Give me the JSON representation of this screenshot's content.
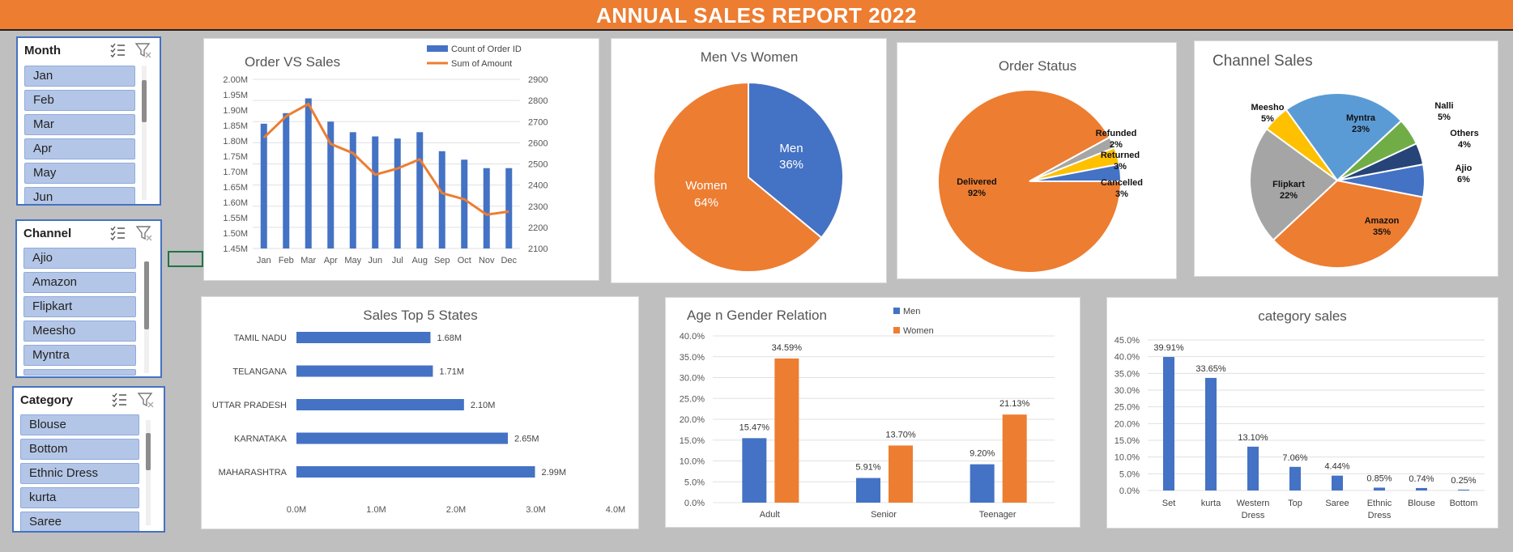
{
  "title": "ANNUAL SALES REPORT 2022",
  "slicers": {
    "month": {
      "label": "Month",
      "items": [
        "Jan",
        "Feb",
        "Mar",
        "Apr",
        "May",
        "Jun"
      ]
    },
    "channel": {
      "label": "Channel",
      "items": [
        "Ajio",
        "Amazon",
        "Flipkart",
        "Meesho",
        "Myntra"
      ]
    },
    "category": {
      "label": "Category",
      "items": [
        "Blouse",
        "Bottom",
        "Ethnic Dress",
        "kurta",
        "Saree"
      ]
    }
  },
  "colors": {
    "blue": "#4472c4",
    "orange": "#ed7d31",
    "gray": "#a5a5a5",
    "gold": "#ffc000",
    "lightblue": "#5b9bd5",
    "green": "#70ad47",
    "navy": "#264478"
  },
  "chart_data": [
    {
      "id": "order_vs_sales",
      "type": "bar",
      "title": "Order VS Sales",
      "categories": [
        "Jan",
        "Feb",
        "Mar",
        "Apr",
        "May",
        "Jun",
        "Jul",
        "Aug",
        "Sep",
        "Oct",
        "Nov",
        "Dec"
      ],
      "series": [
        {
          "name": "Count of Order ID",
          "type": "bar",
          "axis": "left",
          "values": [
            2690,
            2740,
            2810,
            2700,
            2650,
            2630,
            2620,
            2650,
            2560,
            2520,
            2480,
            2480
          ]
        },
        {
          "name": "Sum of Amount",
          "type": "line",
          "axis": "right",
          "values": [
            1.81,
            1.88,
            1.92,
            1.79,
            1.76,
            1.69,
            1.71,
            1.74,
            1.63,
            1.61,
            1.56,
            1.57
          ]
        }
      ],
      "left_axis": {
        "min": 2100,
        "max": 2900,
        "step": 100,
        "ticks": [
          "2100",
          "2200",
          "2300",
          "2400",
          "2500",
          "2600",
          "2700",
          "2800",
          "2900"
        ]
      },
      "right_axis": {
        "min": 1.45,
        "max": 2.0,
        "step": 0.05,
        "ticks": [
          "1.45M",
          "1.50M",
          "1.55M",
          "1.60M",
          "1.65M",
          "1.70M",
          "1.75M",
          "1.80M",
          "1.85M",
          "1.90M",
          "1.95M",
          "2.00M"
        ]
      },
      "legend": "top-right"
    },
    {
      "id": "men_vs_women",
      "type": "pie",
      "title": "Men Vs Women",
      "labels": [
        "Men",
        "Women"
      ],
      "values": [
        36,
        64
      ],
      "data_labels": [
        "36%",
        "64%"
      ]
    },
    {
      "id": "order_status",
      "type": "pie",
      "title": "Order Status",
      "labels": [
        "Delivered",
        "Refunded",
        "Returned",
        "Cancelled"
      ],
      "values": [
        92,
        2,
        3,
        3
      ],
      "data_labels": [
        "92%",
        "2%",
        "3%",
        "3%"
      ]
    },
    {
      "id": "channel_sales",
      "type": "pie",
      "title": "Channel Sales",
      "labels": [
        "Amazon",
        "Flipkart",
        "Meesho",
        "Myntra",
        "Nalli",
        "Others",
        "Ajio"
      ],
      "values": [
        35,
        22,
        5,
        23,
        5,
        4,
        6
      ],
      "data_labels": [
        "35%",
        "22%",
        "5%",
        "23%",
        "5%",
        "4%",
        "6%"
      ]
    },
    {
      "id": "top5_states",
      "type": "bar",
      "orientation": "horizontal",
      "title": "Sales Top 5 States",
      "categories": [
        "TAMIL NADU",
        "TELANGANA",
        "UTTAR PRADESH",
        "KARNATAKA",
        "MAHARASHTRA"
      ],
      "values": [
        1.68,
        1.71,
        2.1,
        2.65,
        2.99
      ],
      "data_labels": [
        "1.68M",
        "1.71M",
        "2.10M",
        "2.65M",
        "2.99M"
      ],
      "xlim": [
        0,
        4
      ],
      "x_ticks": [
        "0.0M",
        "1.0M",
        "2.0M",
        "3.0M",
        "4.0M"
      ]
    },
    {
      "id": "age_gender",
      "type": "bar",
      "title": "Age n Gender Relation",
      "categories": [
        "Adult",
        "Senior",
        "Teenager"
      ],
      "series": [
        {
          "name": "Men",
          "values": [
            15.47,
            5.91,
            9.2
          ],
          "data_labels": [
            "15.47%",
            "5.91%",
            "9.20%"
          ]
        },
        {
          "name": "Women",
          "values": [
            34.59,
            13.7,
            21.13
          ],
          "data_labels": [
            "34.59%",
            "13.70%",
            "21.13%"
          ]
        }
      ],
      "ylim": [
        0,
        40
      ],
      "y_ticks": [
        "0.0%",
        "5.0%",
        "10.0%",
        "15.0%",
        "20.0%",
        "25.0%",
        "30.0%",
        "35.0%",
        "40.0%"
      ],
      "legend": "top"
    },
    {
      "id": "category_sales",
      "type": "bar",
      "title": "category sales",
      "categories": [
        "Set",
        "kurta",
        "Western Dress",
        "Top",
        "Saree",
        "Ethnic Dress",
        "Blouse",
        "Bottom"
      ],
      "values": [
        39.91,
        33.65,
        13.1,
        7.06,
        4.44,
        0.85,
        0.74,
        0.25
      ],
      "data_labels": [
        "39.91%",
        "33.65%",
        "13.10%",
        "7.06%",
        "4.44%",
        "0.85%",
        "0.74%",
        "0.25%"
      ],
      "ylim": [
        0,
        45
      ],
      "y_ticks": [
        "0.0%",
        "5.0%",
        "10.0%",
        "15.0%",
        "20.0%",
        "25.0%",
        "30.0%",
        "35.0%",
        "40.0%",
        "45.0%"
      ]
    }
  ]
}
